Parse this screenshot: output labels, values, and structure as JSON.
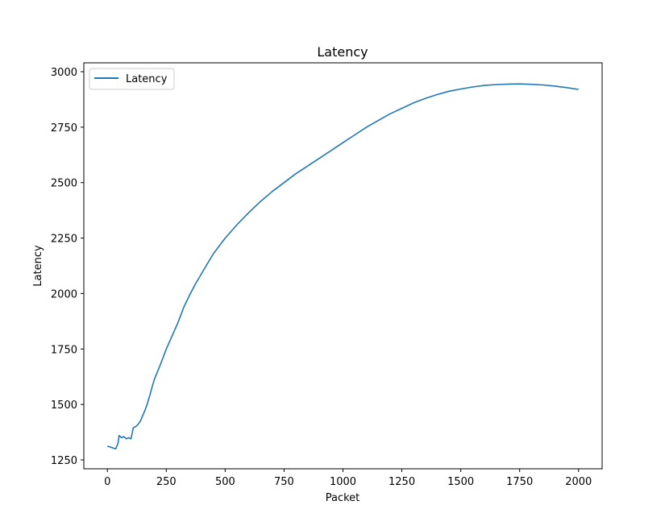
{
  "chart_data": {
    "type": "line",
    "title": "Latency",
    "xlabel": "Packet",
    "ylabel": "Latency",
    "xlim": [
      -100,
      2100
    ],
    "ylim": [
      1210,
      3040
    ],
    "xticks": [
      0,
      250,
      500,
      750,
      1000,
      1250,
      1500,
      1750,
      2000
    ],
    "xtick_labels": [
      "0",
      "250",
      "500",
      "750",
      "1000",
      "1250",
      "1500",
      "1750",
      "2000"
    ],
    "yticks": [
      1250,
      1500,
      1750,
      2000,
      2250,
      2500,
      2750,
      3000
    ],
    "ytick_labels": [
      "1250",
      "1500",
      "1750",
      "2000",
      "2250",
      "2500",
      "2750",
      "3000"
    ],
    "grid": false,
    "legend": {
      "location": "top-left",
      "entries": [
        "Latency"
      ]
    },
    "series": [
      {
        "name": "Latency",
        "color": "#1f77b4",
        "x": [
          0,
          20,
          35,
          45,
          50,
          60,
          70,
          80,
          90,
          100,
          110,
          120,
          130,
          140,
          150,
          160,
          170,
          180,
          190,
          200,
          225,
          250,
          275,
          300,
          325,
          350,
          375,
          400,
          425,
          450,
          475,
          500,
          550,
          600,
          650,
          700,
          750,
          800,
          850,
          900,
          950,
          1000,
          1050,
          1100,
          1150,
          1200,
          1250,
          1300,
          1350,
          1400,
          1450,
          1500,
          1550,
          1600,
          1650,
          1700,
          1750,
          1800,
          1850,
          1900,
          1950,
          2000
        ],
        "y": [
          1312,
          1305,
          1300,
          1325,
          1360,
          1350,
          1355,
          1345,
          1350,
          1345,
          1395,
          1400,
          1410,
          1425,
          1450,
          1475,
          1505,
          1540,
          1580,
          1615,
          1680,
          1750,
          1810,
          1870,
          1940,
          1995,
          2045,
          2090,
          2135,
          2180,
          2215,
          2250,
          2310,
          2365,
          2415,
          2460,
          2500,
          2540,
          2575,
          2610,
          2645,
          2680,
          2715,
          2750,
          2780,
          2810,
          2835,
          2860,
          2880,
          2897,
          2912,
          2922,
          2931,
          2938,
          2942,
          2944,
          2945,
          2943,
          2940,
          2935,
          2928,
          2920
        ]
      }
    ]
  }
}
